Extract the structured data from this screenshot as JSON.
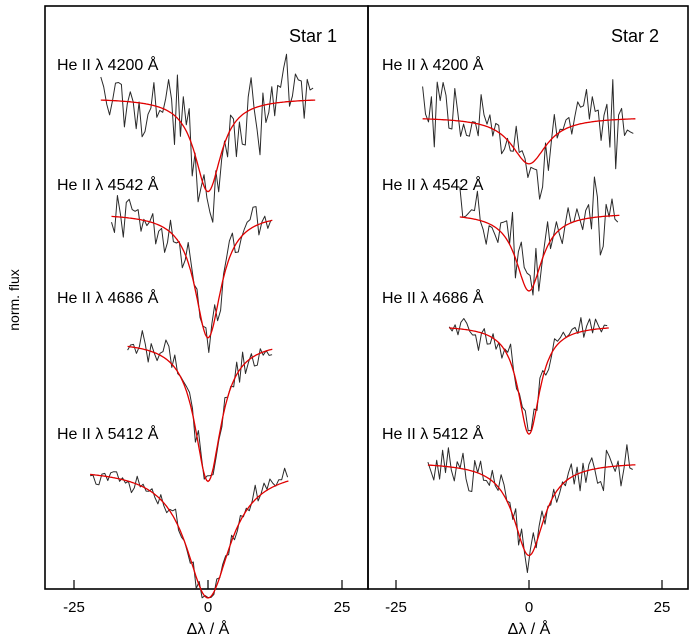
{
  "chart_data": {
    "type": "line",
    "ylabel": "norm. flux",
    "colors": {
      "observed": "#2a2a2a",
      "model": "#e00000",
      "frame": "#000000"
    },
    "panels": [
      {
        "title": "Star 1",
        "xlabel": "Δλ / Å",
        "xlim": [
          -30,
          30
        ],
        "xticks": [
          -25,
          0,
          25
        ],
        "xtick_labels": [
          "-25",
          "0",
          "25"
        ],
        "profiles": [
          {
            "label": "He II λ 4200 Å",
            "x_range": [
              -20,
              20
            ],
            "continuum": 1.0,
            "depth": 0.18,
            "width": 3.0,
            "noise": 0.035,
            "offset": 0.0
          },
          {
            "label": "He II λ 4542 Å",
            "x_range": [
              -18,
              12
            ],
            "continuum": 1.0,
            "depth": 0.24,
            "width": 3.0,
            "noise": 0.02,
            "offset": 0.0
          },
          {
            "label": "He II λ 4686 Å",
            "x_range": [
              -15,
              12
            ],
            "continuum": 1.0,
            "depth": 0.27,
            "width": 3.0,
            "noise": 0.018,
            "offset": 0.0
          },
          {
            "label": "He II λ 5412 Å",
            "x_range": [
              -22,
              15
            ],
            "continuum": 1.0,
            "depth": 0.25,
            "width": 5.0,
            "noise": 0.012,
            "offset": 0.0
          }
        ]
      },
      {
        "title": "Star 2",
        "xlabel": "Δλ / Å",
        "xlim": [
          -30,
          30
        ],
        "xticks": [
          -25,
          0,
          25
        ],
        "xtick_labels": [
          "-25",
          "0",
          "25"
        ],
        "profiles": [
          {
            "label": "He II λ 4200 Å",
            "x_range": [
              -20,
              20
            ],
            "continuum": 1.0,
            "depth": 0.09,
            "width": 4.0,
            "noise": 0.035,
            "offset": 0.0
          },
          {
            "label": "He II λ 4542 Å",
            "x_range": [
              -13,
              17
            ],
            "continuum": 1.0,
            "depth": 0.15,
            "width": 3.0,
            "noise": 0.03,
            "offset": 0.0
          },
          {
            "label": "He II λ 4686 Å",
            "x_range": [
              -15,
              15
            ],
            "continuum": 1.0,
            "depth": 0.21,
            "width": 2.5,
            "noise": 0.02,
            "offset": 0.0
          },
          {
            "label": "He II λ 5412 Å",
            "x_range": [
              -19,
              20
            ],
            "continuum": 1.0,
            "depth": 0.18,
            "width": 3.5,
            "noise": 0.02,
            "offset": 0.0
          }
        ]
      }
    ]
  }
}
